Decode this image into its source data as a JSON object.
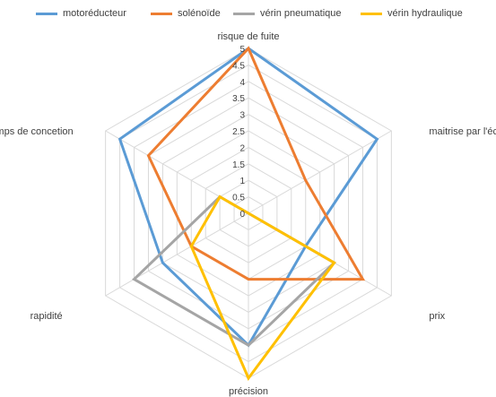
{
  "chart_data": {
    "type": "radar",
    "axes": [
      "risque de fuite",
      "maitrise par l'écurie",
      "prix",
      "précision",
      "rapidité",
      "Temps de concetion"
    ],
    "ticks": [
      "0",
      "0.5",
      "1",
      "1.5",
      "2",
      "2.5",
      "3",
      "3.5",
      "4",
      "4.5",
      "5"
    ],
    "rlim": [
      0,
      5
    ],
    "grid": true,
    "legend_position": "top",
    "series": [
      {
        "name": "motoréducteur",
        "color": "#5B9BD5",
        "values": [
          5,
          4.5,
          2,
          4,
          3,
          4.5
        ]
      },
      {
        "name": "solénoïde",
        "color": "#ED7D31",
        "values": [
          5,
          2,
          4,
          2,
          2,
          3.5
        ]
      },
      {
        "name": "vérin pneumatique",
        "color": "#A5A5A5",
        "values": [
          0,
          0,
          3,
          4,
          4,
          1
        ]
      },
      {
        "name": "vérin hydraulique",
        "color": "#FFC000",
        "values": [
          0,
          0,
          3,
          5,
          2,
          1
        ]
      }
    ]
  }
}
